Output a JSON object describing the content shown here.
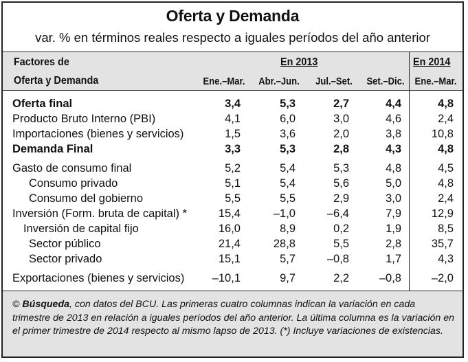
{
  "title": "Oferta y Demanda",
  "subtitle": "var. % en términos reales respecto a iguales períodos del año anterior",
  "header": {
    "factors_line1": "Factores de",
    "factors_line2": "Oferta y Demanda",
    "year_2013": "En 2013",
    "year_2014": "En 2014",
    "columns": [
      "Ene.–Mar.",
      "Abr.–Jun.",
      "Jul.–Set.",
      "Set.–Dic.",
      "Ene.–Mar."
    ]
  },
  "rows": [
    {
      "label": "Oferta final",
      "values": [
        "3,4",
        "5,3",
        "2,7",
        "4,4",
        "4,8"
      ]
    },
    {
      "label": "Producto Bruto Interno (PBI)",
      "values": [
        "4,1",
        "6,0",
        "3,0",
        "4,6",
        "2,4"
      ]
    },
    {
      "label": "Importaciones (bienes y servicios)",
      "values": [
        "1,5",
        "3,6",
        "2,0",
        "3,8",
        "10,8"
      ]
    },
    {
      "label": "Demanda Final",
      "values": [
        "3,3",
        "5,3",
        "2,8",
        "4,3",
        "4,8"
      ]
    },
    {
      "label": "Gasto de consumo final",
      "values": [
        "5,2",
        "5,4",
        "5,3",
        "4,8",
        "4,5"
      ]
    },
    {
      "label": "Consumo privado",
      "values": [
        "5,1",
        "5,4",
        "5,6",
        "5,0",
        "4,8"
      ]
    },
    {
      "label": "Consumo del gobierno",
      "values": [
        "5,5",
        "5,5",
        "2,9",
        "3,0",
        "2,4"
      ]
    },
    {
      "label": "Inversión (Form. bruta de capital) *",
      "values": [
        "15,4",
        "–1,0",
        "–6,4",
        "7,9",
        "12,9"
      ]
    },
    {
      "label": "Inversión de capital fijo",
      "values": [
        "16,0",
        "8,9",
        "0,2",
        "1,9",
        "8,5"
      ]
    },
    {
      "label": "Sector público",
      "values": [
        "21,4",
        "28,8",
        "5,5",
        "2,8",
        "35,7"
      ]
    },
    {
      "label": "Sector privado",
      "values": [
        "15,1",
        "5,7",
        "–0,8",
        "1,7",
        "4,3"
      ]
    },
    {
      "label": "Exportaciones (bienes y servicios)",
      "values": [
        "–10,1",
        "9,7",
        "2,2",
        "–0,8",
        "–2,0"
      ]
    }
  ],
  "footnote": {
    "source_mark": "©",
    "source_name": "Búsqueda",
    "text": ", con datos del BCU. Las primeras cuatro columnas indican la variación en cada trimestre de 2013 en relación a iguales períodos del año anterior. La última columna es la variación en el primer trimestre de 2014 respecto al mismo lapso de 2013. (*) Incluye variaciones de existencias."
  },
  "colors": {
    "header_bg": "#e3e3e3",
    "border": "#222222"
  }
}
